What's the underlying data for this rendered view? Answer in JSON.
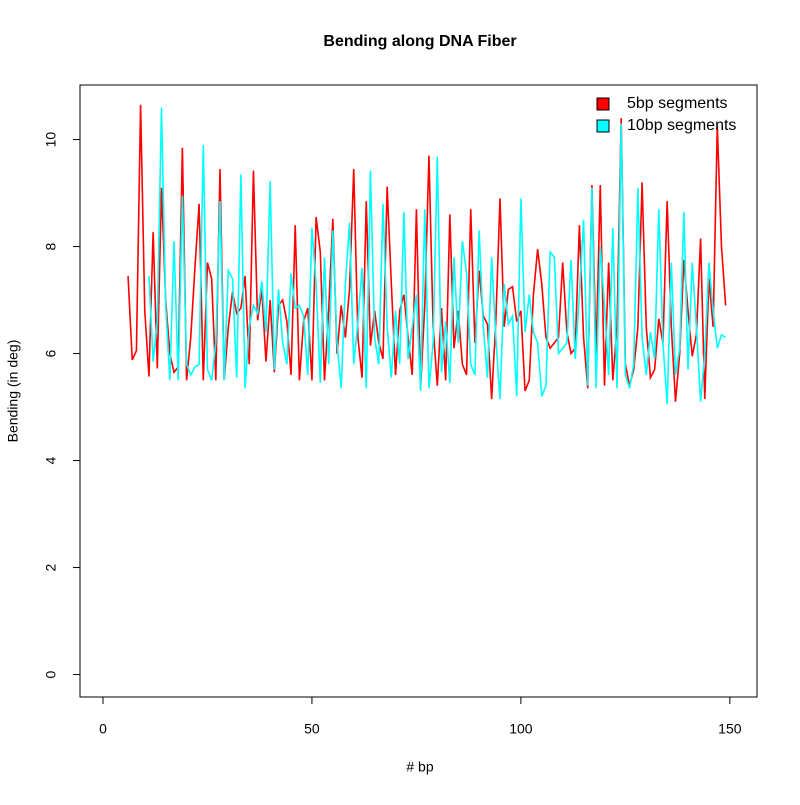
{
  "chart_data": {
    "type": "line",
    "title": "Bending along DNA Fiber",
    "xlabel": "# bp",
    "ylabel": "Bending (in deg)",
    "x": [
      6,
      7,
      8,
      9,
      10,
      11,
      12,
      13,
      14,
      15,
      16,
      17,
      18,
      19,
      20,
      21,
      22,
      23,
      24,
      25,
      26,
      27,
      28,
      29,
      30,
      31,
      32,
      33,
      34,
      35,
      36,
      37,
      38,
      39,
      40,
      41,
      42,
      43,
      44,
      45,
      46,
      47,
      48,
      49,
      50,
      51,
      52,
      53,
      54,
      55,
      56,
      57,
      58,
      59,
      60,
      61,
      62,
      63,
      64,
      65,
      66,
      67,
      68,
      69,
      70,
      71,
      72,
      73,
      74,
      75,
      76,
      77,
      78,
      79,
      80,
      81,
      82,
      83,
      84,
      85,
      86,
      87,
      88,
      89,
      90,
      91,
      92,
      93,
      94,
      95,
      96,
      97,
      98,
      99,
      100,
      101,
      102,
      103,
      104,
      105,
      106,
      107,
      108,
      109,
      110,
      111,
      112,
      113,
      114,
      115,
      116,
      117,
      118,
      119,
      120,
      121,
      122,
      123,
      124,
      125,
      126,
      127,
      128,
      129,
      130,
      131,
      132,
      133,
      134,
      135,
      136,
      137,
      138,
      139,
      140,
      141,
      142,
      143,
      144,
      145,
      146,
      147,
      148,
      149
    ],
    "series": [
      {
        "name": "5bp segments",
        "color": "#ff0000",
        "values": [
          7.45,
          5.88,
          6.05,
          10.65,
          6.8,
          5.57,
          8.27,
          5.72,
          9.1,
          7.0,
          6.0,
          5.65,
          5.75,
          9.85,
          5.5,
          6.3,
          7.6,
          8.8,
          5.5,
          7.7,
          7.4,
          5.5,
          9.45,
          5.5,
          6.5,
          7.15,
          6.75,
          6.85,
          7.45,
          5.8,
          9.42,
          6.62,
          7.2,
          5.85,
          7.0,
          5.65,
          6.9,
          7.0,
          6.6,
          5.6,
          8.4,
          5.5,
          6.6,
          6.85,
          5.5,
          8.55,
          7.9,
          5.5,
          6.8,
          8.52,
          6.0,
          6.9,
          6.3,
          7.2,
          9.45,
          6.3,
          5.55,
          8.85,
          6.15,
          6.8,
          6.2,
          5.9,
          9.12,
          7.3,
          5.6,
          6.8,
          7.1,
          6.3,
          5.6,
          8.7,
          5.35,
          6.9,
          9.7,
          6.5,
          5.4,
          6.85,
          5.5,
          8.6,
          6.1,
          6.8,
          5.8,
          5.6,
          8.7,
          6.2,
          7.55,
          6.7,
          6.55,
          5.15,
          6.6,
          8.9,
          6.5,
          7.2,
          7.25,
          6.6,
          6.8,
          5.3,
          5.5,
          7.1,
          7.95,
          7.3,
          6.3,
          6.1,
          6.2,
          6.3,
          7.7,
          6.4,
          6.0,
          6.1,
          8.4,
          6.3,
          5.35,
          9.15,
          6.0,
          9.15,
          5.4,
          7.7,
          5.5,
          6.5,
          10.4,
          5.8,
          5.4,
          5.7,
          6.5,
          9.2,
          6.5,
          5.55,
          5.7,
          6.65,
          6.2,
          8.85,
          6.5,
          5.1,
          6.0,
          7.75,
          6.8,
          5.95,
          6.35,
          8.15,
          5.15,
          7.4,
          6.5,
          10.25,
          8.0,
          6.9
        ]
      },
      {
        "name": "10bp segments",
        "color": "#00ffff",
        "values": [
          null,
          null,
          null,
          null,
          null,
          7.45,
          5.85,
          6.6,
          10.6,
          6.9,
          5.5,
          8.1,
          5.5,
          8.95,
          5.8,
          5.6,
          5.75,
          5.8,
          9.9,
          5.7,
          5.5,
          6.2,
          8.85,
          5.5,
          7.55,
          7.4,
          5.55,
          9.35,
          5.35,
          6.5,
          6.9,
          6.75,
          7.35,
          6.4,
          9.22,
          5.7,
          7.2,
          6.2,
          5.8,
          7.5,
          6.85,
          6.9,
          6.7,
          5.6,
          8.35,
          7.3,
          5.45,
          7.8,
          5.8,
          8.3,
          6.2,
          5.35,
          7.3,
          8.45,
          5.8,
          6.6,
          7.6,
          5.35,
          9.42,
          6.3,
          5.8,
          8.8,
          6.5,
          5.55,
          6.8,
          5.8,
          8.65,
          5.9,
          6.5,
          7.1,
          5.3,
          8.7,
          5.35,
          6.2,
          9.68,
          5.65,
          6.6,
          5.45,
          7.8,
          6.2,
          8.1,
          7.5,
          5.8,
          5.6,
          8.3,
          6.5,
          5.55,
          7.8,
          6.3,
          5.15,
          7.3,
          6.55,
          6.7,
          5.2,
          8.9,
          6.4,
          7.1,
          6.4,
          6.2,
          5.2,
          5.4,
          7.9,
          7.8,
          6.0,
          6.1,
          6.2,
          7.75,
          5.9,
          7.1,
          8.5,
          5.4,
          9.1,
          5.35,
          8.0,
          6.9,
          5.6,
          8.35,
          5.35,
          10.3,
          5.6,
          5.35,
          5.8,
          9.1,
          6.3,
          5.6,
          6.4,
          5.9,
          8.7,
          6.2,
          5.05,
          7.7,
          5.6,
          6.1,
          8.65,
          5.7,
          7.7,
          6.5,
          5.1,
          6.0,
          7.7,
          6.8,
          6.1,
          6.35,
          6.3
        ]
      }
    ],
    "xlim": [
      -5.5,
      156.5
    ],
    "ylim": [
      -0.42,
      11.02
    ],
    "xticks": [
      0,
      50,
      100,
      150
    ],
    "yticks": [
      0,
      2,
      4,
      6,
      8,
      10
    ],
    "legend": "top-right"
  }
}
